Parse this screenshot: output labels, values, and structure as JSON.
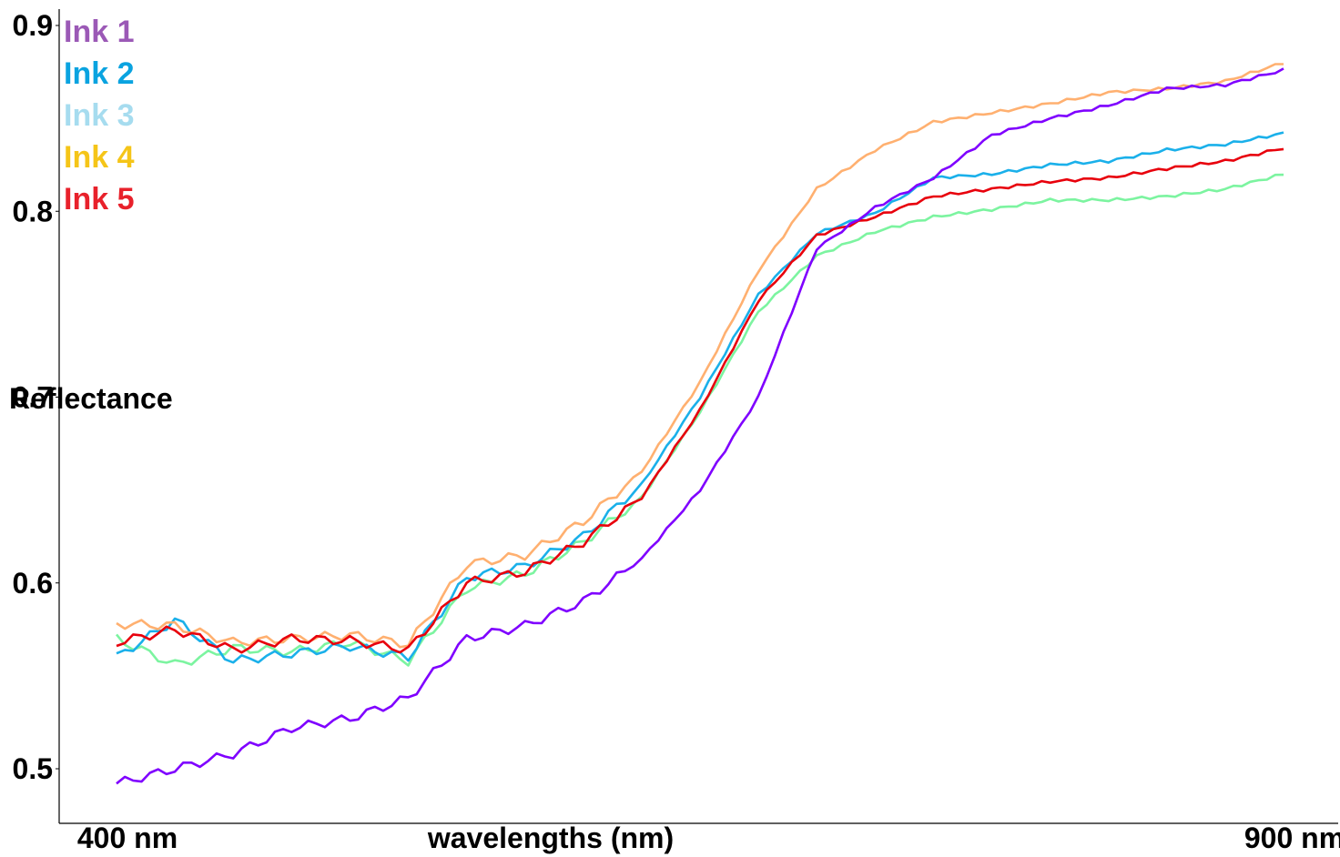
{
  "chart_data": {
    "type": "line",
    "title": "",
    "xlabel": "wavelengths (nm)",
    "ylabel": "Reflectance",
    "xlim": [
      400,
      900
    ],
    "ylim": [
      0.5,
      0.91
    ],
    "x_ticks": [
      {
        "value": 400,
        "label": "400 nm"
      },
      {
        "value": 900,
        "label": "900 nm"
      }
    ],
    "y_ticks": [
      {
        "value": 0.5,
        "label": "0.5"
      },
      {
        "value": 0.6,
        "label": "0.6"
      },
      {
        "value": 0.7,
        "label": "0.7"
      },
      {
        "value": 0.8,
        "label": "0.8"
      },
      {
        "value": 0.9,
        "label": "0.9"
      }
    ],
    "grid": false,
    "legend_position": "top-left",
    "legend": [
      {
        "label": "Ink 1",
        "color": "#9b59b6"
      },
      {
        "label": "Ink 2",
        "color": "#0aa3e0"
      },
      {
        "label": "Ink 3",
        "color": "#a6dcef"
      },
      {
        "label": "Ink 4",
        "color": "#f5c518"
      },
      {
        "label": "Ink 5",
        "color": "#e8212b"
      }
    ],
    "x": [
      400,
      425,
      450,
      475,
      500,
      525,
      550,
      575,
      600,
      625,
      650,
      675,
      700,
      725,
      750,
      775,
      800,
      825,
      850,
      875,
      900
    ],
    "series": [
      {
        "name": "Ink 1",
        "color": "#7f00ff",
        "values": [
          0.492,
          0.5,
          0.508,
          0.522,
          0.527,
          0.538,
          0.57,
          0.577,
          0.59,
          0.613,
          0.65,
          0.7,
          0.78,
          0.802,
          0.818,
          0.841,
          0.85,
          0.857,
          0.866,
          0.868,
          0.876
        ]
      },
      {
        "name": "Ink 2",
        "color": "#1ab0ea",
        "values": [
          0.56,
          0.58,
          0.558,
          0.562,
          0.566,
          0.56,
          0.603,
          0.609,
          0.625,
          0.653,
          0.7,
          0.755,
          0.788,
          0.799,
          0.818,
          0.82,
          0.825,
          0.827,
          0.833,
          0.836,
          0.842
        ]
      },
      {
        "name": "Ink 3",
        "color": "#7cf4a0",
        "values": [
          0.57,
          0.556,
          0.565,
          0.563,
          0.568,
          0.558,
          0.597,
          0.605,
          0.622,
          0.646,
          0.692,
          0.746,
          0.776,
          0.789,
          0.797,
          0.801,
          0.806,
          0.806,
          0.808,
          0.812,
          0.82
        ]
      },
      {
        "name": "Ink 4",
        "color": "#ffb070",
        "values": [
          0.578,
          0.577,
          0.568,
          0.57,
          0.572,
          0.567,
          0.61,
          0.615,
          0.633,
          0.66,
          0.708,
          0.768,
          0.812,
          0.833,
          0.848,
          0.853,
          0.858,
          0.864,
          0.866,
          0.87,
          0.88
        ]
      },
      {
        "name": "Ink 5",
        "color": "#e8000c",
        "values": [
          0.568,
          0.575,
          0.564,
          0.57,
          0.569,
          0.564,
          0.6,
          0.606,
          0.622,
          0.646,
          0.693,
          0.752,
          0.787,
          0.797,
          0.808,
          0.812,
          0.816,
          0.818,
          0.823,
          0.827,
          0.834
        ]
      }
    ]
  }
}
